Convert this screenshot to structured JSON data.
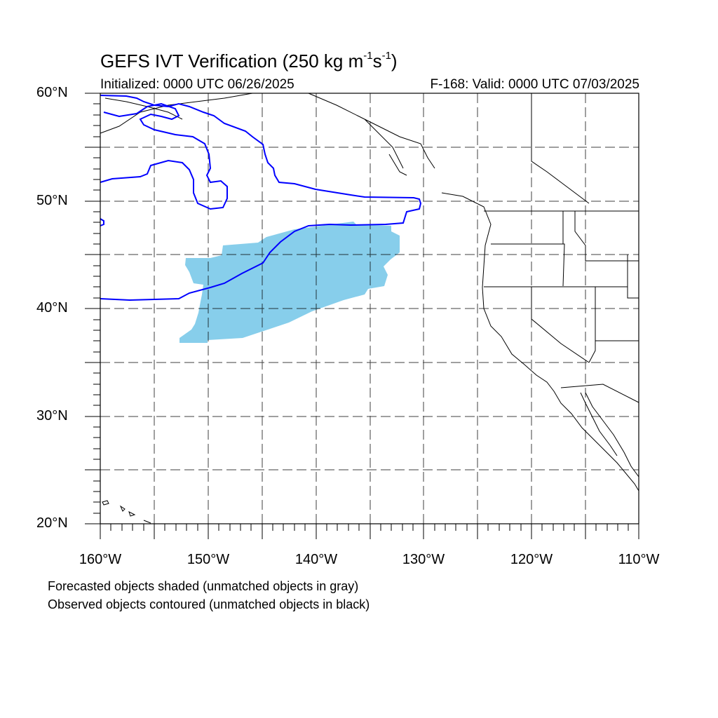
{
  "title": {
    "text": "GEFS IVT Verification (250 kg m",
    "sup1": "-1",
    "mid": "s",
    "sup2": "-1",
    "end": ")"
  },
  "initialized": "Initialized: 0000 UTC 06/26/2025",
  "valid": "F-168: Valid: 0000 UTC 07/03/2025",
  "lat_labels": [
    "60°N",
    "50°N",
    "40°N",
    "30°N",
    "20°N"
  ],
  "lon_labels": [
    "160°W",
    "150°W",
    "140°W",
    "130°W",
    "120°W",
    "110°W"
  ],
  "caption": {
    "line1": "Forecasted objects shaded (unmatched objects in gray)",
    "line2": "Observed objects contoured (unmatched objects in black)"
  },
  "colors": {
    "forecast_fill": "#87ceeb",
    "observed_contour": "#0000ff",
    "coast": "#000000",
    "grid": "#000000"
  }
}
